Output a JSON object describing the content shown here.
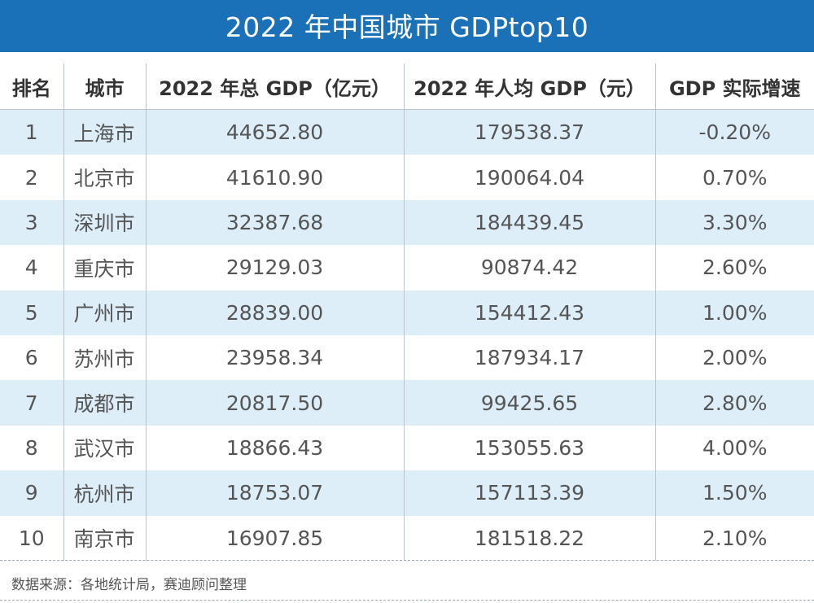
{
  "title": "2022 年中国城市 GDPtop10",
  "headers": [
    "排名",
    "城市",
    "2022 年总 GDP（亿元）",
    "2022 年人均 GDP（元）",
    "GDP 实际增速"
  ],
  "rows": [
    [
      "1",
      "上海市",
      "44652.80",
      "179538.37",
      "-0.20%"
    ],
    [
      "2",
      "北京市",
      "41610.90",
      "190064.04",
      "0.70%"
    ],
    [
      "3",
      "深圳市",
      "32387.68",
      "184439.45",
      "3.30%"
    ],
    [
      "4",
      "重庆市",
      "29129.03",
      "90874.42",
      "2.60%"
    ],
    [
      "5",
      "广州市",
      "28839.00",
      "154412.43",
      "1.00%"
    ],
    [
      "6",
      "苏州市",
      "23958.34",
      "187934.17",
      "2.00%"
    ],
    [
      "7",
      "成都市",
      "20817.50",
      "99425.65",
      "2.80%"
    ],
    [
      "8",
      "武汉市",
      "18866.43",
      "153055.63",
      "4.00%"
    ],
    [
      "9",
      "杭州市",
      "18753.07",
      "157113.39",
      "1.50%"
    ],
    [
      "10",
      "南京市",
      "16907.85",
      "181518.22",
      "2.10%"
    ]
  ],
  "source": "数据来源：各地统计局，赛迪顾问整理",
  "colors": {
    "title_bg": "#1b71b8",
    "stripe": "#ddeef9"
  }
}
